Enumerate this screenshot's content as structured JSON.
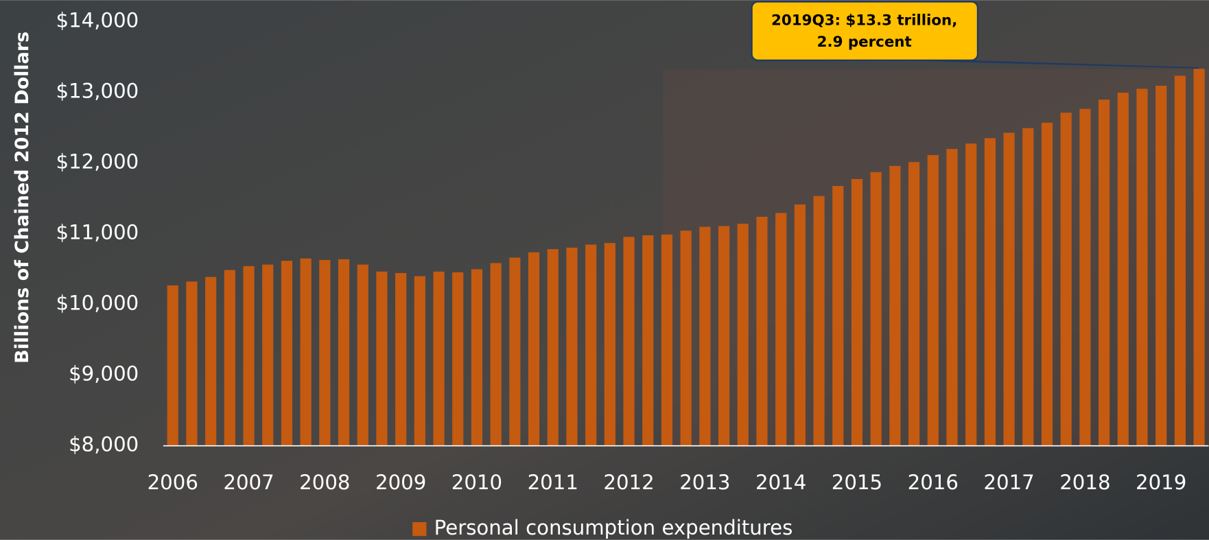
{
  "chart_data": {
    "type": "bar",
    "y_label": "Billions of Chained 2012 Dollars",
    "annotation": [
      "2019Q3: $13.3 trillion,",
      "2.9 percent"
    ],
    "categories": [
      "2006",
      null,
      null,
      null,
      "2007",
      null,
      null,
      null,
      "2008",
      null,
      null,
      null,
      "2009",
      null,
      null,
      null,
      "2010",
      null,
      null,
      null,
      "2011",
      null,
      null,
      null,
      "2012",
      null,
      null,
      null,
      "2013",
      null,
      null,
      null,
      "2014",
      null,
      null,
      null,
      "2015",
      null,
      null,
      null,
      "2016",
      null,
      null,
      null,
      "2017",
      null,
      null,
      null,
      "2018",
      null,
      null,
      null,
      "2019",
      null,
      null
    ],
    "series": [
      {
        "name": "Personal consumption expenditures",
        "color": "#c55a11",
        "values": [
          10269,
          10324,
          10389,
          10487,
          10542,
          10564,
          10618,
          10651,
          10629,
          10640,
          10564,
          10465,
          10444,
          10400,
          10465,
          10455,
          10498,
          10585,
          10662,
          10738,
          10782,
          10804,
          10847,
          10869,
          10956,
          10978,
          10989,
          11044,
          11098,
          11109,
          11142,
          11240,
          11294,
          11414,
          11534,
          11676,
          11774,
          11873,
          11960,
          12014,
          12113,
          12200,
          12276,
          12353,
          12429,
          12494,
          12571,
          12713,
          12767,
          12898,
          12996,
          13051,
          13094,
          13236,
          13334
        ]
      }
    ],
    "ylim": [
      8000,
      14000
    ],
    "yticks": [
      {
        "value": 8000,
        "label": "$8,000"
      },
      {
        "value": 9000,
        "label": "$9,000"
      },
      {
        "value": 10000,
        "label": "$10,000"
      },
      {
        "value": 11000,
        "label": "$11,000"
      },
      {
        "value": 12000,
        "label": "$12,000"
      },
      {
        "value": 13000,
        "label": "$13,000"
      },
      {
        "value": 14000,
        "label": "$14,000"
      }
    ],
    "grid": false
  }
}
